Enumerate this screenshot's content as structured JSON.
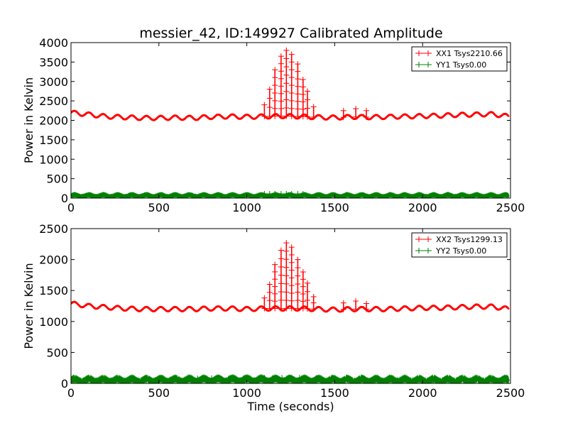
{
  "figure_title": "messier_42, ID:149927 Calibrated Amplitude",
  "colors": {
    "xx": "#ff0000",
    "yy": "#008000",
    "axes": "#000000",
    "background": "#ffffff"
  },
  "chart_data": [
    {
      "type": "line",
      "marker": "plus",
      "title": "messier_42, ID:149927 Calibrated Amplitude",
      "xlabel": "",
      "ylabel": "Power in Kelvin",
      "xlim": [
        0,
        2500
      ],
      "ylim": [
        0,
        4000
      ],
      "xticks": [
        0,
        500,
        1000,
        1500,
        2000,
        2500
      ],
      "yticks": [
        0,
        500,
        1000,
        1500,
        2000,
        2500,
        3000,
        3500,
        4000
      ],
      "legend_position": "top-right",
      "series": [
        {
          "name": "XX1 Tsys2210.66",
          "color": "#ff0000",
          "baseline": 2100,
          "ripple": 55,
          "baseline_drift": 60,
          "x": [
            0,
            100,
            200,
            300,
            400,
            500,
            600,
            700,
            800,
            900,
            1000,
            1100,
            1200,
            1300,
            1400,
            1500,
            1600,
            1700,
            1800,
            1900,
            2000,
            2100,
            2200,
            2300,
            2400,
            2490
          ],
          "y": [
            2200,
            2150,
            2100,
            2080,
            2060,
            2060,
            2070,
            2060,
            2090,
            2100,
            2090,
            2100,
            2110,
            2100,
            2080,
            2070,
            2090,
            2080,
            2090,
            2100,
            2110,
            2120,
            2140,
            2150,
            2160,
            2100
          ],
          "spikes": [
            {
              "x": 1100,
              "y": 2400
            },
            {
              "x": 1130,
              "y": 2800
            },
            {
              "x": 1160,
              "y": 3300
            },
            {
              "x": 1195,
              "y": 3650
            },
            {
              "x": 1225,
              "y": 3800
            },
            {
              "x": 1255,
              "y": 3700
            },
            {
              "x": 1290,
              "y": 3450
            },
            {
              "x": 1320,
              "y": 3050
            },
            {
              "x": 1345,
              "y": 2750
            },
            {
              "x": 1380,
              "y": 2350
            },
            {
              "x": 1550,
              "y": 2250
            },
            {
              "x": 1620,
              "y": 2300
            },
            {
              "x": 1680,
              "y": 2250
            }
          ]
        },
        {
          "name": "YY1 Tsys0.00",
          "color": "#008000",
          "baseline": 60,
          "ripple": 25,
          "baseline_drift": 0,
          "x": [
            0,
            500,
            1000,
            1500,
            2000,
            2490
          ],
          "y": [
            60,
            60,
            60,
            60,
            60,
            60
          ],
          "spikes": [
            {
              "x": 1100,
              "y": 110
            },
            {
              "x": 1130,
              "y": 110
            },
            {
              "x": 1160,
              "y": 110
            },
            {
              "x": 1195,
              "y": 110
            },
            {
              "x": 1225,
              "y": 110
            },
            {
              "x": 1255,
              "y": 110
            },
            {
              "x": 1290,
              "y": 110
            },
            {
              "x": 1320,
              "y": 110
            }
          ]
        }
      ]
    },
    {
      "type": "line",
      "marker": "plus",
      "title": "",
      "xlabel": "Time (seconds)",
      "ylabel": "Power in Kelvin",
      "xlim": [
        0,
        2500
      ],
      "ylim": [
        0,
        2500
      ],
      "xticks": [
        0,
        500,
        1000,
        1500,
        2000,
        2500
      ],
      "yticks": [
        0,
        500,
        1000,
        1500,
        2000,
        2500
      ],
      "legend_position": "top-right",
      "series": [
        {
          "name": "XX2 Tsys1299.13",
          "color": "#ff0000",
          "baseline": 1220,
          "ripple": 35,
          "baseline_drift": 40,
          "x": [
            0,
            100,
            200,
            300,
            400,
            500,
            600,
            700,
            800,
            900,
            1000,
            1100,
            1200,
            1300,
            1400,
            1500,
            1600,
            1700,
            1800,
            1900,
            2000,
            2100,
            2200,
            2300,
            2400,
            2490
          ],
          "y": [
            1290,
            1250,
            1230,
            1210,
            1200,
            1200,
            1200,
            1200,
            1210,
            1210,
            1200,
            1210,
            1210,
            1210,
            1200,
            1190,
            1200,
            1200,
            1200,
            1210,
            1220,
            1220,
            1230,
            1240,
            1240,
            1200
          ],
          "spikes": [
            {
              "x": 1100,
              "y": 1380
            },
            {
              "x": 1130,
              "y": 1600
            },
            {
              "x": 1160,
              "y": 1920
            },
            {
              "x": 1195,
              "y": 2150
            },
            {
              "x": 1225,
              "y": 2270
            },
            {
              "x": 1255,
              "y": 2200
            },
            {
              "x": 1290,
              "y": 2000
            },
            {
              "x": 1320,
              "y": 1800
            },
            {
              "x": 1345,
              "y": 1620
            },
            {
              "x": 1380,
              "y": 1400
            },
            {
              "x": 1550,
              "y": 1300
            },
            {
              "x": 1620,
              "y": 1330
            },
            {
              "x": 1680,
              "y": 1290
            }
          ]
        },
        {
          "name": "YY2 Tsys0.00",
          "color": "#008000",
          "baseline": 50,
          "ripple": 25,
          "baseline_drift": 0,
          "x": [
            0,
            500,
            1000,
            1500,
            2000,
            2490
          ],
          "y": [
            50,
            50,
            55,
            50,
            50,
            50
          ],
          "spikes": [
            {
              "x": 720,
              "y": 80
            },
            {
              "x": 800,
              "y": 85
            },
            {
              "x": 900,
              "y": 85
            },
            {
              "x": 1100,
              "y": 90
            },
            {
              "x": 1200,
              "y": 90
            },
            {
              "x": 1300,
              "y": 90
            }
          ]
        }
      ]
    }
  ]
}
